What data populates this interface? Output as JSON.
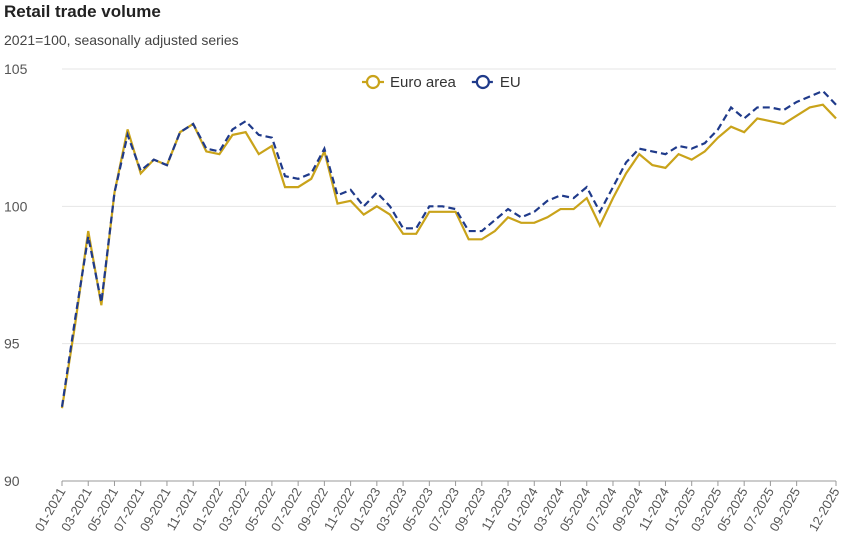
{
  "chart_data": {
    "type": "line",
    "title": "Retail trade volume",
    "subtitle": "2021=100, seasonally adjusted series",
    "categories": [
      "01-2021",
      null,
      "03-2021",
      null,
      "05-2021",
      null,
      "07-2021",
      null,
      "09-2021",
      null,
      "11-2021",
      null,
      "01-2022",
      null,
      "03-2022",
      null,
      "05-2022",
      null,
      "07-2022",
      null,
      "09-2022",
      null,
      "11-2022",
      null,
      "01-2023",
      null,
      "03-2023",
      null,
      "05-2023",
      null,
      "07-2023",
      null,
      "09-2023",
      null,
      "11-2023",
      null,
      "01-2024",
      null,
      "03-2024",
      null,
      "05-2024",
      null,
      "07-2024",
      null,
      "09-2024",
      null,
      "11-2024",
      null,
      "01-2025",
      null,
      "03-2025",
      null,
      "05-2025",
      null,
      "07-2025",
      null,
      "09-2025",
      null,
      null,
      "12-2025"
    ],
    "series": [
      {
        "name": "Euro area",
        "color": "#c9a31a",
        "dash": false,
        "values": [
          92.65,
          95.7,
          99.1,
          96.4,
          100.5,
          102.8,
          101.2,
          101.7,
          101.5,
          102.7,
          103.0,
          102.0,
          101.9,
          102.6,
          102.7,
          101.9,
          102.2,
          100.7,
          100.7,
          101.0,
          102.0,
          100.1,
          100.2,
          99.7,
          100.0,
          99.7,
          99.0,
          99.0,
          99.8,
          99.8,
          99.8,
          98.8,
          98.8,
          99.1,
          99.6,
          99.4,
          99.4,
          99.6,
          99.9,
          99.9,
          100.3,
          99.3,
          100.3,
          101.2,
          101.9,
          101.5,
          101.4,
          101.9,
          101.7,
          102.0,
          102.5,
          102.9,
          102.7,
          103.2,
          103.1,
          103.0,
          103.3,
          103.6,
          103.7,
          103.2
        ]
      },
      {
        "name": "EU",
        "color": "#1f3a8a",
        "dash": true,
        "values": [
          92.7,
          95.9,
          98.9,
          96.5,
          100.5,
          102.6,
          101.3,
          101.7,
          101.5,
          102.7,
          103.0,
          102.1,
          102.0,
          102.8,
          103.1,
          102.6,
          102.5,
          101.1,
          101.0,
          101.2,
          102.1,
          100.4,
          100.6,
          100.0,
          100.5,
          100.0,
          99.2,
          99.2,
          100.0,
          100.0,
          99.9,
          99.1,
          99.1,
          99.5,
          99.9,
          99.6,
          99.8,
          100.2,
          100.4,
          100.3,
          100.7,
          99.8,
          100.7,
          101.6,
          102.1,
          102.0,
          101.9,
          102.2,
          102.1,
          102.3,
          102.8,
          103.6,
          103.2,
          103.6,
          103.6,
          103.5,
          103.8,
          104.0,
          104.2,
          103.7
        ]
      }
    ],
    "ylim": [
      90,
      105
    ],
    "yticks": [
      90,
      95,
      100,
      105
    ],
    "grid": true
  }
}
